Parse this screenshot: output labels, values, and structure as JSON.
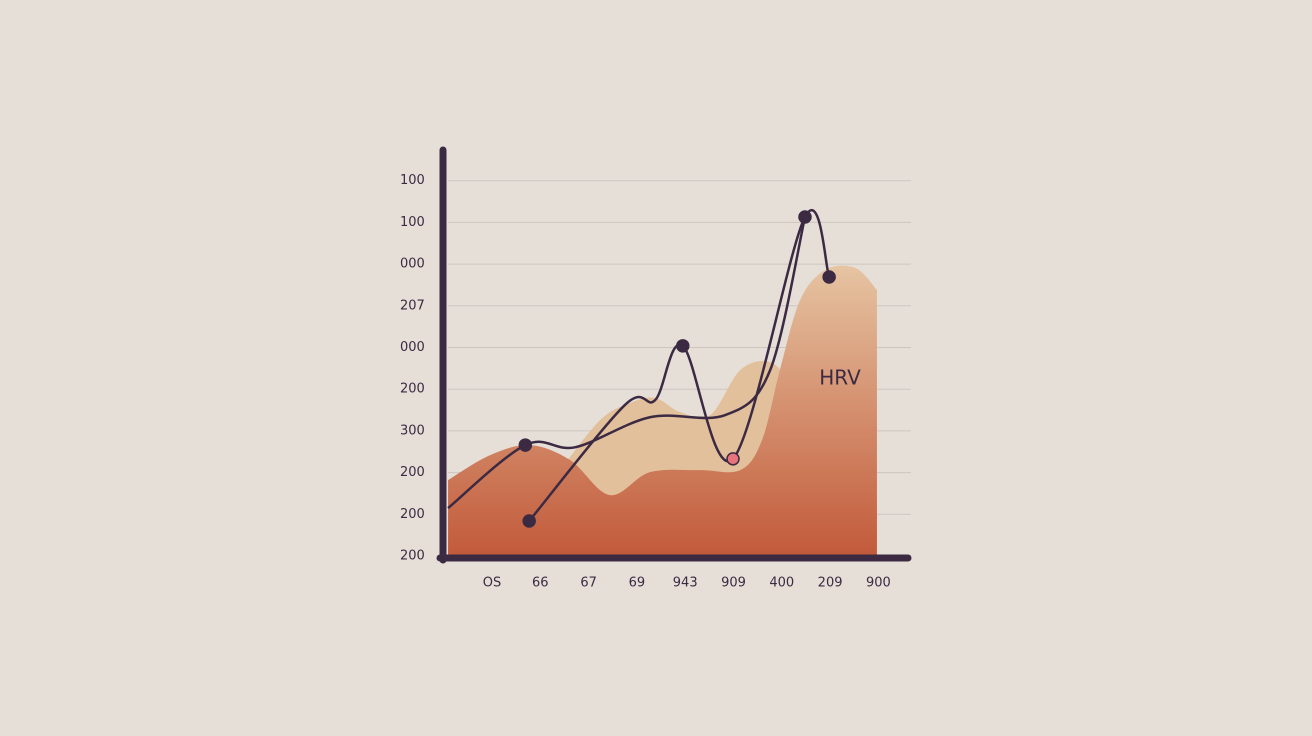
{
  "chart_data": {
    "type": "line",
    "annotation": "HRV",
    "xlim": [
      0,
      9.7
    ],
    "xticks": [
      {
        "value": 1,
        "label": "OS"
      },
      {
        "value": 2,
        "label": "66"
      },
      {
        "value": 3,
        "label": "67"
      },
      {
        "value": 4,
        "label": "69"
      },
      {
        "value": 5,
        "label": "943"
      },
      {
        "value": 6,
        "label": "909"
      },
      {
        "value": 7,
        "label": "400"
      },
      {
        "value": 8,
        "label": "209"
      },
      {
        "value": 9,
        "label": "900"
      }
    ],
    "ylim": [
      0,
      9.8
    ],
    "yticks": [
      {
        "value": 0,
        "label": "200"
      },
      {
        "value": 1,
        "label": "200"
      },
      {
        "value": 2,
        "label": "200"
      },
      {
        "value": 3,
        "label": "300"
      },
      {
        "value": 4,
        "label": "200"
      },
      {
        "value": 5,
        "label": "000"
      },
      {
        "value": 6,
        "label": "207"
      },
      {
        "value": 7,
        "label": "000"
      },
      {
        "value": 8,
        "label": "100"
      },
      {
        "value": 9,
        "label": "100"
      }
    ],
    "grid": true,
    "series": [
      {
        "style": "area",
        "color": "#e3c09c",
        "x": [
          2.41,
          3.24,
          3.86,
          4.38,
          4.9,
          5.52,
          6.14,
          6.76,
          7.17,
          7.38
        ],
        "values": [
          2.06,
          3.26,
          3.67,
          3.79,
          3.45,
          3.38,
          4.46,
          4.65,
          4.1,
          3.26
        ]
      },
      {
        "style": "area",
        "color": [
          "#e6c4a2",
          "#c25a3a"
        ],
        "x": [
          0.09,
          0.96,
          1.79,
          2.62,
          3.44,
          4.27,
          5.31,
          6.14,
          6.59,
          6.96,
          7.38,
          7.9,
          8.52,
          8.97
        ],
        "values": [
          1.82,
          2.42,
          2.66,
          2.3,
          1.46,
          2.01,
          2.06,
          2.06,
          2.78,
          4.46,
          6.14,
          6.86,
          6.91,
          6.38
        ]
      },
      {
        "style": "line",
        "color": "#3b2a42",
        "x": [
          0.09,
          1.69,
          2.73,
          4.28,
          5.83,
          6.76,
          7.48
        ],
        "values": [
          1.15,
          2.66,
          2.61,
          3.33,
          3.38,
          4.46,
          8.13
        ],
        "marker_colors": [
          null,
          "#3b2a42",
          null,
          null,
          null,
          null,
          null
        ]
      },
      {
        "style": "line",
        "color": "#3b2a42",
        "x": [
          1.77,
          3.75,
          4.38,
          4.95,
          5.99,
          7.48,
          7.98
        ],
        "values": [
          0.84,
          3.62,
          3.74,
          5.04,
          2.33,
          8.13,
          6.69
        ],
        "marker_colors": [
          "#3b2a42",
          null,
          null,
          "#3b2a42",
          "#e8737a",
          "#3b2a42",
          "#3b2a42"
        ]
      }
    ]
  }
}
